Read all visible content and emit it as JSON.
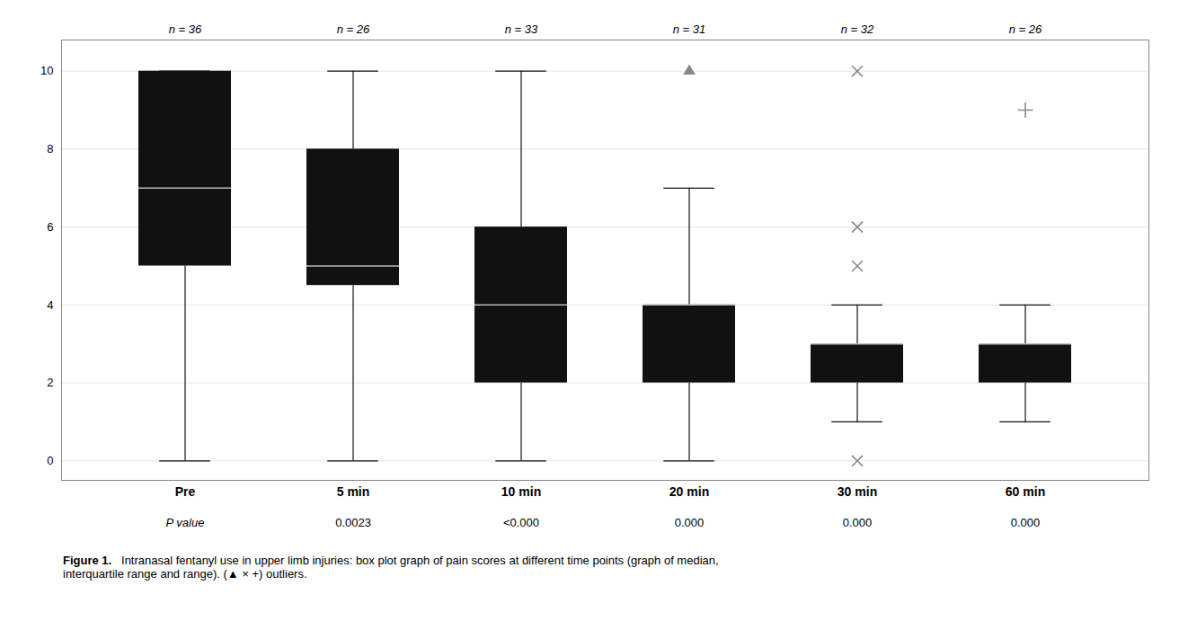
{
  "chart_data": {
    "type": "box",
    "categories": [
      "Pre",
      "5 min",
      "10 min",
      "20 min",
      "30 min",
      "60 min"
    ],
    "n_labels": [
      "n = 36",
      "n = 26",
      "n = 33",
      "n = 31",
      "n = 32",
      "n = 26"
    ],
    "p_label": "P value",
    "p_values": [
      "0.0023",
      "<0.000",
      "0.000",
      "0.000",
      "0.000"
    ],
    "boxes": [
      {
        "q1": 5,
        "median": 7,
        "q3": 10,
        "whisker_low": 0,
        "whisker_high": 10,
        "outliers": [],
        "outlier_markers": []
      },
      {
        "q1": 4.5,
        "median": 5,
        "q3": 8,
        "whisker_low": 0,
        "whisker_high": 10,
        "outliers": [],
        "outlier_markers": []
      },
      {
        "q1": 2,
        "median": 4,
        "q3": 6,
        "whisker_low": 0,
        "whisker_high": 10,
        "outliers": [],
        "outlier_markers": []
      },
      {
        "q1": 2,
        "median": 4,
        "q3": 4,
        "whisker_low": 0,
        "whisker_high": 7,
        "outliers": [
          10
        ],
        "outlier_markers": [
          "triangle"
        ]
      },
      {
        "q1": 2,
        "median": 3,
        "q3": 3,
        "whisker_low": 1,
        "whisker_high": 4,
        "outliers": [
          0,
          5,
          6,
          10
        ],
        "outlier_markers": [
          "x",
          "x",
          "x",
          "x"
        ]
      },
      {
        "q1": 2,
        "median": 3,
        "q3": 3,
        "whisker_low": 1,
        "whisker_high": 4,
        "outliers": [
          9
        ],
        "outlier_markers": [
          "plus"
        ]
      }
    ],
    "color": "#111111",
    "ylim": [
      -0.5,
      10.8
    ],
    "yticks": [
      0,
      2,
      4,
      6,
      8,
      10
    ],
    "grid": true,
    "caption_bold": "Figure 1.",
    "caption": "   Intranasal fentanyl use in upper limb injuries: box plot graph of pain scores at different time points (graph of median,\ninterquartile range and range). (▲ × +) outliers."
  }
}
